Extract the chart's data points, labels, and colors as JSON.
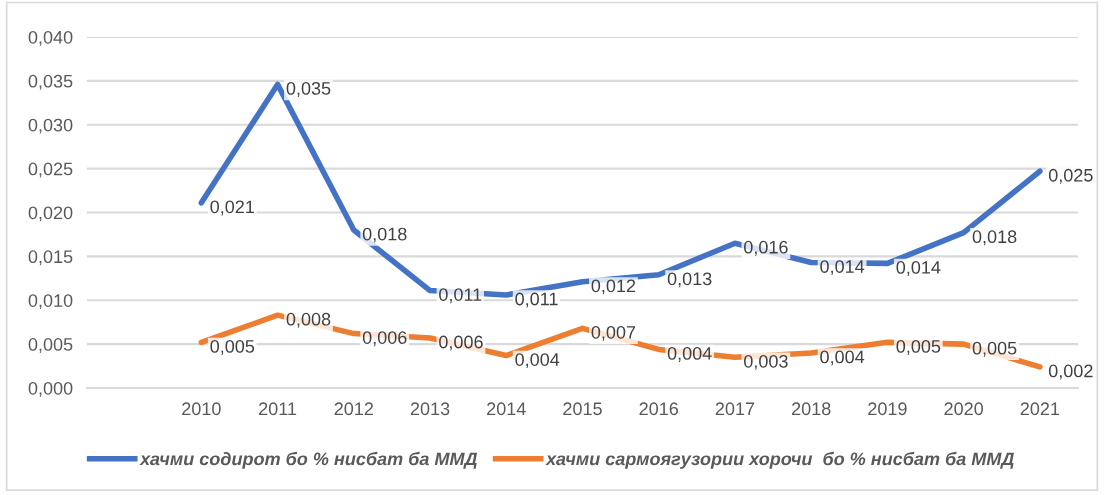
{
  "chart_data": {
    "type": "line",
    "categories": [
      null,
      "2010",
      "2011",
      "2012",
      "2013",
      "2014",
      "2015",
      "2016",
      "2017",
      "2018",
      "2019",
      "2020",
      "2021"
    ],
    "series": [
      {
        "name": "хачми содирот бо % нисбат ба ММД",
        "color": "#4472c4",
        "values": [
          null,
          0.0211,
          0.0346,
          0.018,
          0.0111,
          0.0106,
          0.0121,
          0.0129,
          0.0165,
          0.0143,
          0.0142,
          0.0177,
          0.0247
        ],
        "value_labels": [
          null,
          "0,021",
          "0,035",
          "0,018",
          "0,011",
          "0,011",
          "0,012",
          "0,013",
          "0,016",
          "0,014",
          "0,014",
          "0,018",
          "0,025"
        ]
      },
      {
        "name": "хачми сармоягузории хорочи  бо % нисбат ба ММД",
        "color": "#ed7d31",
        "values": [
          null,
          0.0052,
          0.0083,
          0.0062,
          0.0057,
          0.0037,
          0.0068,
          0.0044,
          0.0035,
          0.004,
          0.0052,
          0.005,
          0.0024
        ],
        "value_labels": [
          null,
          "0,005",
          "0,008",
          "0,006",
          "0,006",
          "0,004",
          "0,007",
          "0,004",
          "0,003",
          "0,004",
          "0,005",
          "0,005",
          "0,002"
        ]
      }
    ],
    "ylim": [
      0,
      0.04
    ],
    "yticks": [
      {
        "value": 0,
        "label": "0,000"
      },
      {
        "value": 0.005,
        "label": "0,005"
      },
      {
        "value": 0.01,
        "label": "0,010"
      },
      {
        "value": 0.015,
        "label": "0,015"
      },
      {
        "value": 0.02,
        "label": "0,020"
      },
      {
        "value": 0.025,
        "label": "0,025"
      },
      {
        "value": 0.03,
        "label": "0,030"
      },
      {
        "value": 0.035,
        "label": "0,035"
      },
      {
        "value": 0.04,
        "label": "0,040"
      }
    ],
    "grid": "y",
    "legend": "bottom",
    "marker": "none",
    "line_style": "solid"
  }
}
